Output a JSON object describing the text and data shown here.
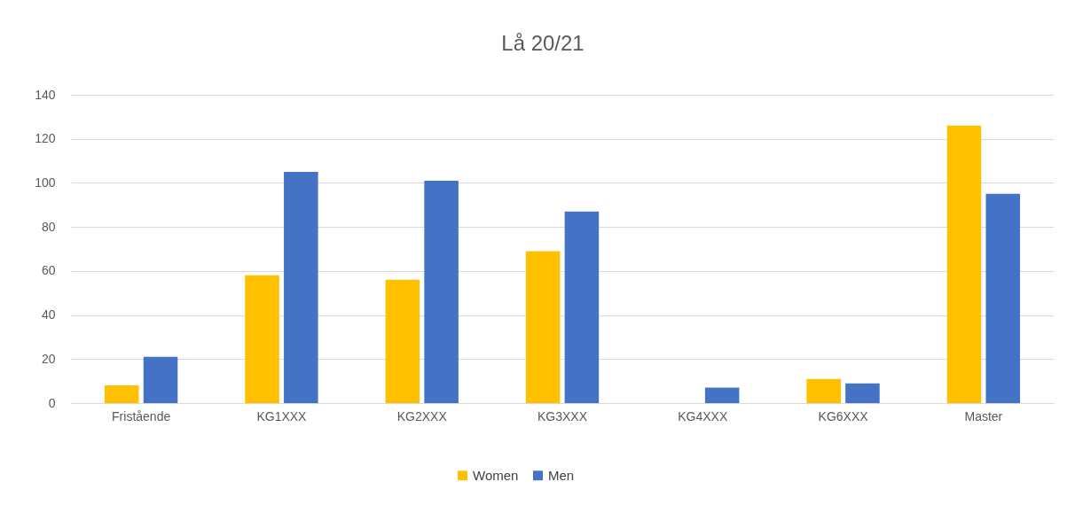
{
  "chart_data": {
    "type": "bar",
    "title": "Lå 20/21",
    "categories": [
      "Fristående",
      "KG1XXX",
      "KG2XXX",
      "KG3XXX",
      "KG4XXX",
      "KG6XXX",
      "Master"
    ],
    "series": [
      {
        "name": "Women",
        "color": "#ffc000",
        "values": [
          8,
          58,
          56,
          69,
          0,
          11,
          126
        ]
      },
      {
        "name": "Men",
        "color": "#4472c4",
        "values": [
          21,
          105,
          101,
          87,
          7,
          9,
          95
        ]
      }
    ],
    "ylim": [
      0,
      140
    ],
    "yticks": [
      0,
      20,
      40,
      60,
      80,
      100,
      120,
      140
    ],
    "grid": "y",
    "legend": "bottom"
  }
}
